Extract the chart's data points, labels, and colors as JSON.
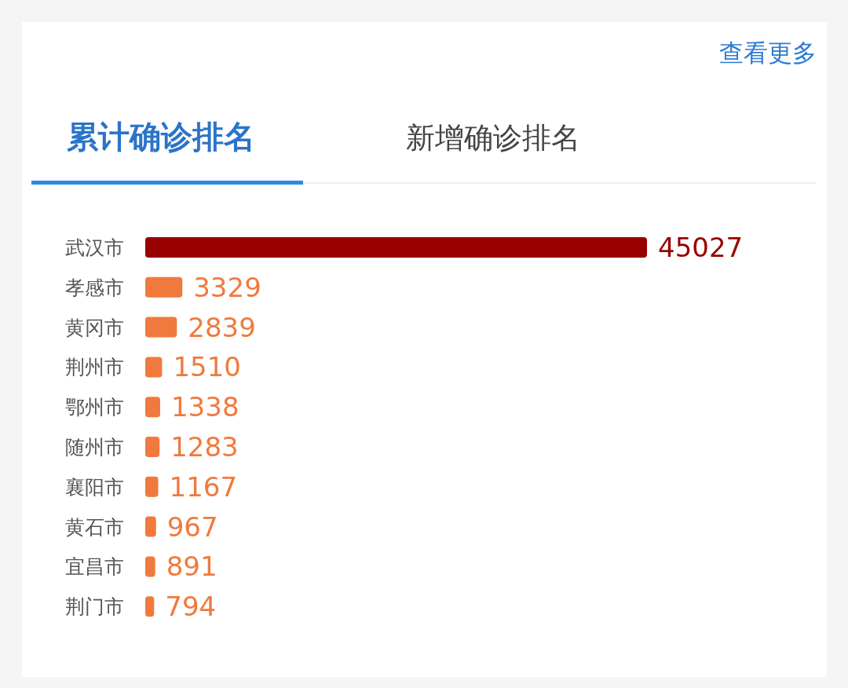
{
  "chart_data": {
    "type": "bar",
    "orientation": "horizontal",
    "title": "累计确诊排名",
    "annotations": [
      "新增确诊排名",
      "查看更多"
    ],
    "categories": [
      "武汉市",
      "孝感市",
      "黄冈市",
      "荆州市",
      "鄂州市",
      "随州市",
      "襄阳市",
      "黄石市",
      "宜昌市",
      "荆门市"
    ],
    "values": [
      45027,
      3329,
      2839,
      1510,
      1338,
      1283,
      1167,
      967,
      891,
      794
    ],
    "colors": [
      "#990000",
      "#f07a3e",
      "#f07a3e",
      "#f07a3e",
      "#f07a3e",
      "#f07a3e",
      "#f07a3e",
      "#f07a3e",
      "#f07a3e",
      "#f07a3e"
    ],
    "data_labels": true
  }
}
